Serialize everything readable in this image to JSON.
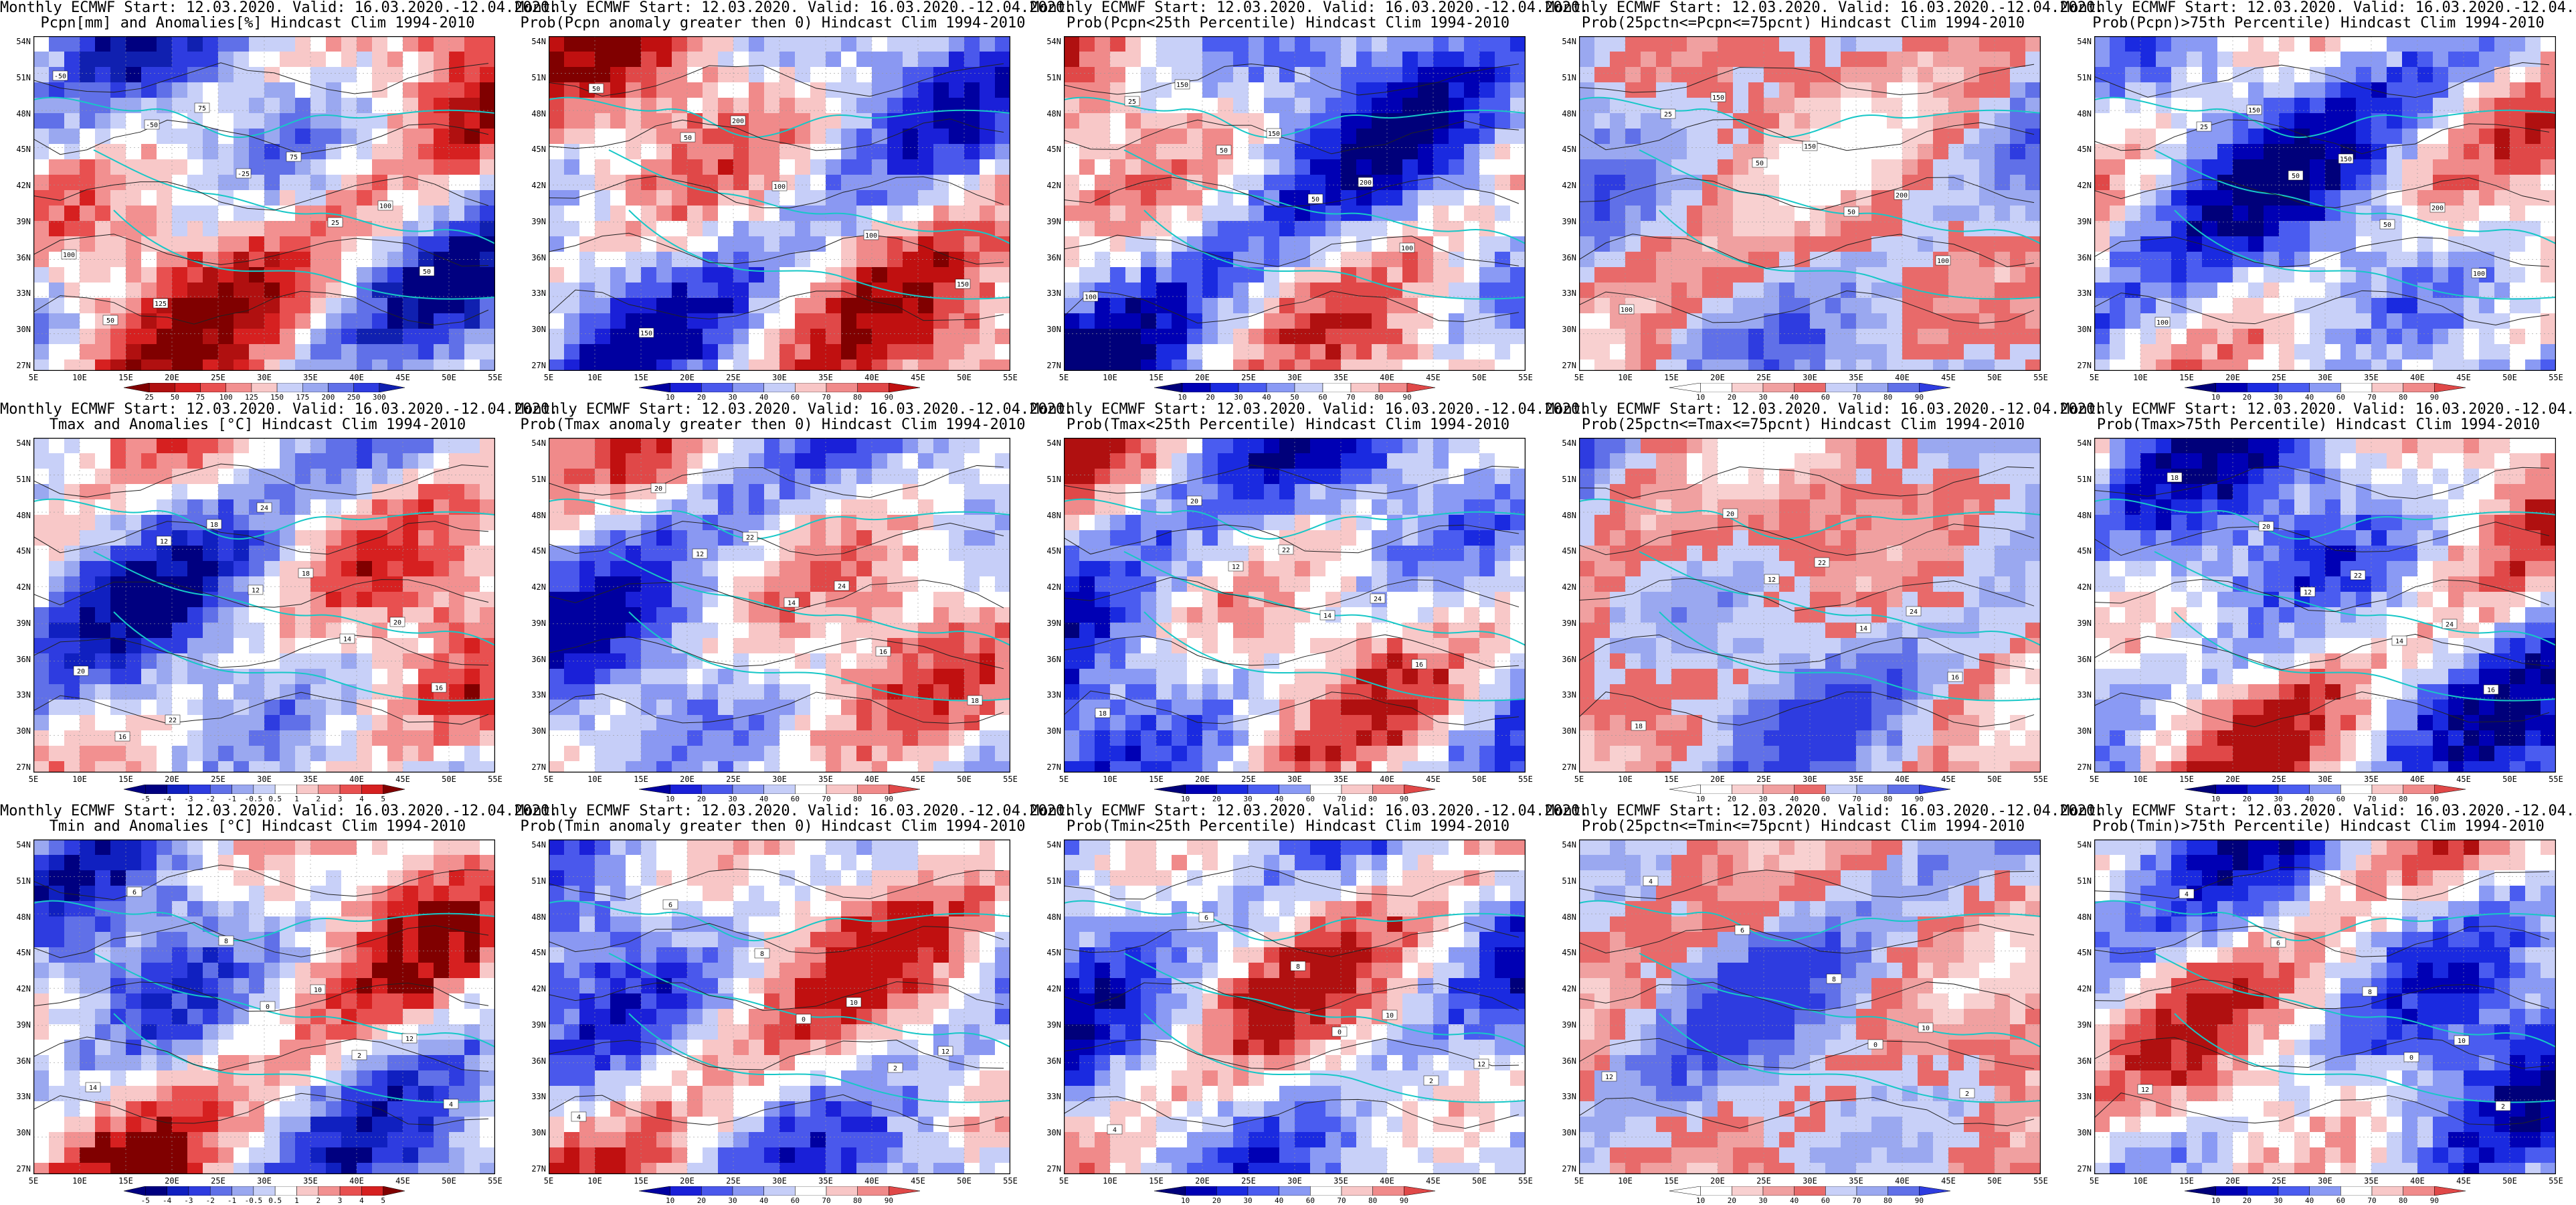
{
  "panels": [
    {
      "id": "r0c0",
      "title1": "Monthly ECMWF Start: 12.03.2020. Valid: 16.03.2020.-12.04.2020.",
      "title2": "Pcpn[mm] and Anomalies[%] Hindcast Clim 1994-2010",
      "palette": "anom",
      "colorbar": [
        "25",
        "50",
        "75",
        "100",
        "125",
        "150",
        "175",
        "200",
        "250",
        "300"
      ],
      "map_labels": [
        "-50",
        "-50",
        "-25",
        "25",
        "50",
        "50",
        "75",
        "75",
        "100",
        "100",
        "125"
      ]
    },
    {
      "id": "r0c1",
      "title1": "Monthly ECMWF Start: 12.03.2020. Valid: 16.03.2020.-12.04.2020.",
      "title2": "Prob(Pcpn anomaly greater then 0) Hindcast Clim 1994-2010",
      "palette": "prob",
      "colorbar": [
        "10",
        "20",
        "30",
        "40",
        "60",
        "70",
        "80",
        "90"
      ],
      "map_labels": [
        "50",
        "50",
        "100",
        "100",
        "150",
        "150",
        "200"
      ]
    },
    {
      "id": "r0c2",
      "title1": "Monthly ECMWF Start: 12.03.2020. Valid: 16.03.2020.-12.04.2020.",
      "title2": "Prob(Pcpn<25th Percentile) Hindcast Clim 1994-2010",
      "palette": "probblue",
      "colorbar": [
        "10",
        "20",
        "30",
        "40",
        "50",
        "60",
        "70",
        "80",
        "90"
      ],
      "map_labels": [
        "25",
        "50",
        "50",
        "100",
        "100",
        "150",
        "150",
        "200"
      ]
    },
    {
      "id": "r0c3",
      "title1": "Monthly ECMWF Start: 12.03.2020. Valid: 16.03.2020.-12.04.2020.",
      "title2": "Prob(25pctn<=Pcpn<=75pcnt) Hindcast Clim 1994-2010",
      "palette": "mixed",
      "colorbar": [
        "10",
        "20",
        "30",
        "40",
        "60",
        "70",
        "80",
        "90"
      ],
      "map_labels": [
        "25",
        "50",
        "50",
        "100",
        "100",
        "150",
        "150",
        "200"
      ]
    },
    {
      "id": "r0c4",
      "title1": "Monthly ECMWF Start: 12.03.2020. Valid: 16.03.2020.-12.04.2020.",
      "title2": "Prob(Pcpn)>75th Percentile) Hindcast Clim 1994-2010",
      "palette": "probblue",
      "colorbar": [
        "10",
        "20",
        "30",
        "40",
        "60",
        "70",
        "80",
        "90"
      ],
      "map_labels": [
        "25",
        "50",
        "50",
        "100",
        "100",
        "150",
        "150",
        "200"
      ]
    },
    {
      "id": "r1c0",
      "title1": "Monthly ECMWF Start: 12.03.2020. Valid: 16.03.2020.-12.04.2020.",
      "title2": "Tmax and Anomalies [°C] Hindcast Clim 1994-2010",
      "palette": "anomtemp",
      "colorbar": [
        "-5",
        "-4",
        "-3",
        "-2",
        "-1",
        "-0.5",
        "0.5",
        "1",
        "2",
        "3",
        "4",
        "5"
      ],
      "map_labels": [
        "12",
        "12",
        "14",
        "16",
        "16",
        "18",
        "18",
        "20",
        "20",
        "22",
        "24"
      ]
    },
    {
      "id": "r1c1",
      "title1": "Monthly ECMWF Start: 12.03.2020. Valid: 16.03.2020.-12.04.2020.",
      "title2": "Prob(Tmax anomaly greater then 0) Hindcast Clim 1994-2010",
      "palette": "probtemp",
      "colorbar": [
        "10",
        "20",
        "30",
        "40",
        "60",
        "70",
        "80",
        "90"
      ],
      "map_labels": [
        "12",
        "14",
        "16",
        "18",
        "20",
        "22",
        "24"
      ]
    },
    {
      "id": "r1c2",
      "title1": "Monthly ECMWF Start: 12.03.2020. Valid: 16.03.2020.-12.04.2020.",
      "title2": "Prob(Tmax<25th Percentile) Hindcast Clim 1994-2010",
      "palette": "probblue",
      "colorbar": [
        "10",
        "20",
        "30",
        "40",
        "60",
        "70",
        "80",
        "90"
      ],
      "map_labels": [
        "12",
        "14",
        "16",
        "18",
        "20",
        "22",
        "24"
      ]
    },
    {
      "id": "r1c3",
      "title1": "Monthly ECMWF Start: 12.03.2020. Valid: 16.03.2020.-12.04.2020.",
      "title2": "Prob(25pctn<=Tmax<=75pcnt) Hindcast Clim 1994-2010",
      "palette": "mixed",
      "colorbar": [
        "10",
        "20",
        "30",
        "40",
        "60",
        "70",
        "80",
        "90"
      ],
      "map_labels": [
        "12",
        "14",
        "16",
        "18",
        "20",
        "22",
        "24"
      ]
    },
    {
      "id": "r1c4",
      "title1": "Monthly ECMWF Start: 12.03.2020. Valid: 16.03.2020.-12.04.2020.",
      "title2": "Prob(Tmax>75th Percentile) Hindcast Clim 1994-2010",
      "palette": "probblue",
      "colorbar": [
        "10",
        "20",
        "30",
        "40",
        "60",
        "70",
        "80",
        "90"
      ],
      "map_labels": [
        "12",
        "14",
        "16",
        "18",
        "20",
        "22",
        "24"
      ]
    },
    {
      "id": "r2c0",
      "title1": "Monthly ECMWF Start: 12.03.2020. Valid: 16.03.2020.-12.04.2020.",
      "title2": "Tmin and Anomalies [°C] Hindcast Clim 1994-2010",
      "palette": "anomtemp",
      "colorbar": [
        "-5",
        "-4",
        "-3",
        "-2",
        "-1",
        "-0.5",
        "0.5",
        "1",
        "2",
        "3",
        "4",
        "5"
      ],
      "map_labels": [
        "0",
        "2",
        "4",
        "6",
        "8",
        "10",
        "12",
        "14"
      ]
    },
    {
      "id": "r2c1",
      "title1": "Monthly ECMWF Start: 12.03.2020. Valid: 16.03.2020.-12.04.2020.",
      "title2": "Prob(Tmin anomaly greater then 0) Hindcast Clim 1994-2010",
      "palette": "probtemp",
      "colorbar": [
        "10",
        "20",
        "30",
        "40",
        "60",
        "70",
        "80",
        "90"
      ],
      "map_labels": [
        "0",
        "2",
        "4",
        "6",
        "8",
        "10",
        "12"
      ]
    },
    {
      "id": "r2c2",
      "title1": "Monthly ECMWF Start: 12.03.2020. Valid: 16.03.2020.-12.04.2020.",
      "title2": "Prob(Tmin<25th Percentile) Hindcast Clim 1994-2010",
      "palette": "probblue",
      "colorbar": [
        "10",
        "20",
        "30",
        "40",
        "60",
        "70",
        "80",
        "90"
      ],
      "map_labels": [
        "0",
        "2",
        "4",
        "6",
        "8",
        "10",
        "12"
      ]
    },
    {
      "id": "r2c3",
      "title1": "Monthly ECMWF Start: 12.03.2020. Valid: 16.03.2020.-12.04.2020.",
      "title2": "Prob(25pctn<=Tmin<=75pcnt) Hindcast Clim 1994-2010",
      "palette": "mixed",
      "colorbar": [
        "10",
        "20",
        "30",
        "40",
        "60",
        "70",
        "80",
        "90"
      ],
      "map_labels": [
        "0",
        "2",
        "4",
        "6",
        "8",
        "10",
        "12"
      ]
    },
    {
      "id": "r2c4",
      "title1": "Monthly ECMWF Start: 12.03.2020. Valid: 16.03.2020.-12.04.2020.",
      "title2": "Prob(Tmin)>75th Percentile) Hindcast Clim 1994-2010",
      "palette": "probblue",
      "colorbar": [
        "10",
        "20",
        "30",
        "40",
        "60",
        "70",
        "80",
        "90"
      ],
      "map_labels": [
        "0",
        "2",
        "4",
        "6",
        "8",
        "10",
        "12"
      ]
    }
  ],
  "lat_ticks": [
    "54N",
    "51N",
    "48N",
    "45N",
    "42N",
    "39N",
    "36N",
    "33N",
    "30N",
    "27N"
  ],
  "lon_ticks": [
    "5E",
    "10E",
    "15E",
    "20E",
    "25E",
    "30E",
    "35E",
    "40E",
    "45E",
    "50E",
    "55E"
  ],
  "palettes": {
    "anom": [
      "#800000",
      "#b01010",
      "#d62020",
      "#e85050",
      "#f29090",
      "#f8c8c8",
      "#ffffff",
      "#c8d0f8",
      "#9aa8f0",
      "#6070e8",
      "#2e3ce0",
      "#1020b0",
      "#000080"
    ],
    "prob": [
      "#0000a0",
      "#1a20d8",
      "#4a58ec",
      "#8a98f2",
      "#c6cef8",
      "#ffffff",
      "#f8c6c6",
      "#f08a8a",
      "#e04848",
      "#c01010",
      "#800000"
    ],
    "probblue": [
      "#00007a",
      "#0000b4",
      "#1a2ae0",
      "#4a5cf0",
      "#8a9af4",
      "#c8d0f8",
      "#ffffff",
      "#f8c8c8",
      "#f08a8a",
      "#e04848",
      "#b01010"
    ],
    "mixed": [
      "#ffffff",
      "#f8d0d0",
      "#f0a0a0",
      "#e86a6a",
      "#c8d0f8",
      "#9aa8f0",
      "#6070e8",
      "#2e3ce0"
    ],
    "anomtemp": [
      "#000080",
      "#1020c0",
      "#2e3ce0",
      "#6070e8",
      "#9aa8f0",
      "#c8d0f8",
      "#ffffff",
      "#f8c8c8",
      "#f29090",
      "#e85050",
      "#d62020",
      "#800000"
    ],
    "probtemp": [
      "#0000a0",
      "#1a20d8",
      "#4a58ec",
      "#8a98f2",
      "#c6cef8",
      "#ffffff",
      "#f8c6c6",
      "#f08a8a",
      "#e04848",
      "#c01010"
    ]
  },
  "colors": {
    "coast": "#17c7c7",
    "contour": "#222222",
    "grid": "#999999"
  }
}
